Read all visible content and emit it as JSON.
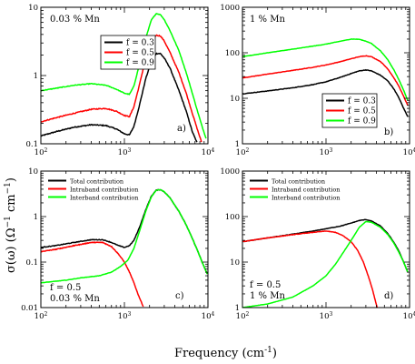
{
  "figure": {
    "ylabel": "σ(ω)  (Ω",
    "ylabel_sup1": "−1",
    "ylabel_mid": " cm",
    "ylabel_sup2": "−1",
    "ylabel_end": ")",
    "xlabel": "Frequency (cm",
    "xlabel_sup": "-1",
    "xlabel_end": ")"
  },
  "chart_data": [
    {
      "id": "a",
      "type": "line",
      "panel_label": "a)",
      "annotations": [
        "0.03 % Mn"
      ],
      "legend_position": "top-right",
      "xscale": "log",
      "yscale": "log",
      "xlim": [
        100,
        10000
      ],
      "ylim": [
        0.1,
        10
      ],
      "xtick_values": [
        100,
        1000,
        10000
      ],
      "xtick_labels": [
        "10",
        "10",
        "10"
      ],
      "xtick_exps": [
        "2",
        "3",
        "4"
      ],
      "ytick_values": [
        0.1,
        1,
        10
      ],
      "ytick_labels": [
        "0.1",
        "1",
        "10"
      ],
      "series": [
        {
          "name": "f = 0.3",
          "color": "#000000",
          "noise": 0.015,
          "points": [
            [
              100,
              0.13
            ],
            [
              150,
              0.15
            ],
            [
              250,
              0.175
            ],
            [
              400,
              0.19
            ],
            [
              600,
              0.185
            ],
            [
              800,
              0.165
            ],
            [
              1000,
              0.14
            ],
            [
              1150,
              0.135
            ],
            [
              1300,
              0.18
            ],
            [
              1500,
              0.35
            ],
            [
              1800,
              0.9
            ],
            [
              2100,
              1.6
            ],
            [
              2400,
              2.1
            ],
            [
              2700,
              2.1
            ],
            [
              3000,
              1.8
            ],
            [
              3500,
              1.3
            ],
            [
              4500,
              0.6
            ],
            [
              5500,
              0.3
            ],
            [
              6500,
              0.15
            ],
            [
              7500,
              0.1
            ]
          ]
        },
        {
          "name": "f = 0.5",
          "color": "#ff0000",
          "noise": 0.015,
          "points": [
            [
              100,
              0.21
            ],
            [
              150,
              0.24
            ],
            [
              250,
              0.28
            ],
            [
              400,
              0.32
            ],
            [
              600,
              0.33
            ],
            [
              800,
              0.3
            ],
            [
              1000,
              0.26
            ],
            [
              1150,
              0.25
            ],
            [
              1300,
              0.35
            ],
            [
              1500,
              0.7
            ],
            [
              1800,
              1.8
            ],
            [
              2100,
              3.2
            ],
            [
              2400,
              3.9
            ],
            [
              2700,
              3.8
            ],
            [
              3000,
              3.2
            ],
            [
              3500,
              2.2
            ],
            [
              4500,
              1.1
            ],
            [
              5500,
              0.55
            ],
            [
              6500,
              0.28
            ],
            [
              7500,
              0.16
            ],
            [
              8500,
              0.1
            ]
          ]
        },
        {
          "name": "f = 0.9",
          "color": "#00ff00",
          "noise": 0.01,
          "points": [
            [
              100,
              0.6
            ],
            [
              150,
              0.65
            ],
            [
              250,
              0.72
            ],
            [
              400,
              0.76
            ],
            [
              600,
              0.72
            ],
            [
              800,
              0.63
            ],
            [
              1000,
              0.55
            ],
            [
              1150,
              0.53
            ],
            [
              1300,
              0.7
            ],
            [
              1500,
              1.4
            ],
            [
              1800,
              3.5
            ],
            [
              2100,
              6.5
            ],
            [
              2400,
              8.1
            ],
            [
              2700,
              7.8
            ],
            [
              3000,
              6.6
            ],
            [
              3500,
              4.6
            ],
            [
              4500,
              2.3
            ],
            [
              5500,
              1.1
            ],
            [
              6500,
              0.55
            ],
            [
              7500,
              0.3
            ],
            [
              8500,
              0.18
            ],
            [
              9500,
              0.12
            ]
          ]
        }
      ]
    },
    {
      "id": "b",
      "type": "line",
      "panel_label": "b)",
      "annotations": [
        "1 % Mn"
      ],
      "legend_position": "bottom-right",
      "xscale": "log",
      "yscale": "log",
      "xlim": [
        100,
        10000
      ],
      "ylim": [
        1,
        1000
      ],
      "xtick_values": [
        100,
        1000,
        10000
      ],
      "xtick_labels": [
        "10",
        "10",
        "10"
      ],
      "xtick_exps": [
        "2",
        "3",
        "4"
      ],
      "ytick_values": [
        1,
        10,
        100,
        1000
      ],
      "ytick_labels": [
        "1",
        "10",
        "100",
        "1000"
      ],
      "series": [
        {
          "name": "f = 0.3",
          "color": "#000000",
          "noise": 0.012,
          "points": [
            [
              100,
              12.5
            ],
            [
              200,
              14.5
            ],
            [
              400,
              17
            ],
            [
              700,
              20
            ],
            [
              1000,
              23
            ],
            [
              1500,
              29
            ],
            [
              2000,
              35
            ],
            [
              2500,
              40
            ],
            [
              3000,
              42
            ],
            [
              3500,
              40
            ],
            [
              4500,
              32
            ],
            [
              5500,
              24
            ],
            [
              6500,
              16
            ],
            [
              7500,
              10
            ],
            [
              8500,
              6
            ],
            [
              9500,
              4
            ]
          ]
        },
        {
          "name": "f = 0.5",
          "color": "#ff0000",
          "noise": 0.01,
          "points": [
            [
              100,
              28
            ],
            [
              200,
              34
            ],
            [
              400,
              41
            ],
            [
              700,
              48
            ],
            [
              1000,
              54
            ],
            [
              1500,
              64
            ],
            [
              2000,
              74
            ],
            [
              2500,
              82
            ],
            [
              3000,
              86
            ],
            [
              3500,
              82
            ],
            [
              4500,
              64
            ],
            [
              5500,
              44
            ],
            [
              6500,
              28
            ],
            [
              7500,
              18
            ],
            [
              8500,
              11
            ],
            [
              9500,
              7
            ]
          ]
        },
        {
          "name": "f = 0.9",
          "color": "#00ff00",
          "noise": 0.008,
          "points": [
            [
              100,
              82
            ],
            [
              200,
              100
            ],
            [
              400,
              120
            ],
            [
              700,
              140
            ],
            [
              1000,
              155
            ],
            [
              1500,
              180
            ],
            [
              2000,
              200
            ],
            [
              2500,
              198
            ],
            [
              3000,
              180
            ],
            [
              3500,
              160
            ],
            [
              4500,
              110
            ],
            [
              5500,
              70
            ],
            [
              6500,
              42
            ],
            [
              7500,
              25
            ],
            [
              8500,
              15
            ],
            [
              9500,
              9
            ]
          ]
        }
      ]
    },
    {
      "id": "c",
      "type": "line",
      "panel_label": "c)",
      "annotations": [
        "f = 0.5",
        "0.03 % Mn"
      ],
      "legend_position": "top-left",
      "xscale": "log",
      "yscale": "log",
      "xlim": [
        100,
        10000
      ],
      "ylim": [
        0.01,
        10
      ],
      "xtick_values": [
        100,
        1000,
        10000
      ],
      "xtick_labels": [
        "10",
        "10",
        "10"
      ],
      "xtick_exps": [
        "2",
        "3",
        "4"
      ],
      "ytick_values": [
        0.01,
        0.1,
        1,
        10
      ],
      "ytick_labels": [
        "0.01",
        "0.1",
        "1",
        "10"
      ],
      "series": [
        {
          "name": "Total contribution",
          "color": "#000000",
          "noise": 0.015,
          "points": [
            [
              100,
              0.21
            ],
            [
              150,
              0.23
            ],
            [
              250,
              0.27
            ],
            [
              400,
              0.31
            ],
            [
              550,
              0.31
            ],
            [
              700,
              0.27
            ],
            [
              850,
              0.23
            ],
            [
              1000,
              0.21
            ],
            [
              1150,
              0.23
            ],
            [
              1300,
              0.3
            ],
            [
              1500,
              0.55
            ],
            [
              1800,
              1.4
            ],
            [
              2100,
              2.8
            ],
            [
              2400,
              3.8
            ],
            [
              2700,
              3.9
            ],
            [
              3000,
              3.5
            ],
            [
              3500,
              2.6
            ],
            [
              4500,
              1.3
            ],
            [
              5500,
              0.65
            ],
            [
              6500,
              0.33
            ],
            [
              7500,
              0.18
            ],
            [
              8500,
              0.1
            ],
            [
              9800,
              0.055
            ]
          ]
        },
        {
          "name": "Intraband contribution",
          "color": "#ff0000",
          "noise": 0.015,
          "points": [
            [
              100,
              0.17
            ],
            [
              150,
              0.19
            ],
            [
              250,
              0.23
            ],
            [
              400,
              0.27
            ],
            [
              550,
              0.27
            ],
            [
              700,
              0.22
            ],
            [
              850,
              0.15
            ],
            [
              1000,
              0.1
            ],
            [
              1150,
              0.06
            ],
            [
              1300,
              0.035
            ],
            [
              1450,
              0.02
            ],
            [
              1600,
              0.013
            ],
            [
              1700,
              0.01
            ]
          ]
        },
        {
          "name": "Interband contribution",
          "color": "#00ff00",
          "noise": 0.008,
          "points": [
            [
              100,
              0.035
            ],
            [
              200,
              0.04
            ],
            [
              300,
              0.045
            ],
            [
              500,
              0.05
            ],
            [
              700,
              0.06
            ],
            [
              900,
              0.08
            ],
            [
              1100,
              0.11
            ],
            [
              1300,
              0.2
            ],
            [
              1500,
              0.45
            ],
            [
              1800,
              1.3
            ],
            [
              2100,
              2.7
            ],
            [
              2400,
              3.8
            ],
            [
              2700,
              3.9
            ],
            [
              3000,
              3.5
            ],
            [
              3500,
              2.6
            ],
            [
              4500,
              1.3
            ],
            [
              5500,
              0.65
            ],
            [
              6500,
              0.33
            ],
            [
              7500,
              0.18
            ],
            [
              8500,
              0.1
            ],
            [
              9800,
              0.055
            ]
          ]
        }
      ]
    },
    {
      "id": "d",
      "type": "line",
      "panel_label": "d)",
      "annotations": [
        "f = 0.5",
        "1 % Mn"
      ],
      "legend_position": "top-left",
      "xscale": "log",
      "yscale": "log",
      "xlim": [
        100,
        10000
      ],
      "ylim": [
        1,
        1000
      ],
      "xtick_values": [
        100,
        1000,
        10000
      ],
      "xtick_labels": [
        "10",
        "10",
        "10"
      ],
      "xtick_exps": [
        "2",
        "3",
        "4"
      ],
      "ytick_values": [
        1,
        10,
        100,
        1000
      ],
      "ytick_labels": [
        "1",
        "10",
        "100",
        "1000"
      ],
      "series": [
        {
          "name": "Total contribution",
          "color": "#000000",
          "noise": 0.01,
          "points": [
            [
              100,
              28
            ],
            [
              200,
              34
            ],
            [
              400,
              41
            ],
            [
              700,
              48
            ],
            [
              1000,
              54
            ],
            [
              1500,
              62
            ],
            [
              2000,
              72
            ],
            [
              2500,
              82
            ],
            [
              3000,
              86
            ],
            [
              3500,
              80
            ],
            [
              4500,
              62
            ],
            [
              5500,
              42
            ],
            [
              6500,
              27
            ],
            [
              7500,
              17
            ],
            [
              8500,
              10
            ],
            [
              9500,
              6
            ]
          ]
        },
        {
          "name": "Intraband contribution",
          "color": "#ff0000",
          "noise": 0.01,
          "points": [
            [
              100,
              28
            ],
            [
              200,
              34
            ],
            [
              400,
              40
            ],
            [
              700,
              45
            ],
            [
              1000,
              48
            ],
            [
              1300,
              45
            ],
            [
              1600,
              38
            ],
            [
              2000,
              28
            ],
            [
              2400,
              18
            ],
            [
              2800,
              10
            ],
            [
              3200,
              5
            ],
            [
              3600,
              2.5
            ],
            [
              3900,
              1.4
            ],
            [
              4100,
              1
            ]
          ]
        },
        {
          "name": "Interband contribution",
          "color": "#00ff00",
          "noise": 0.005,
          "points": [
            [
              100,
              1
            ],
            [
              200,
              1.2
            ],
            [
              400,
              1.7
            ],
            [
              700,
              3
            ],
            [
              1000,
              5
            ],
            [
              1300,
              9
            ],
            [
              1600,
              16
            ],
            [
              2000,
              30
            ],
            [
              2500,
              58
            ],
            [
              3000,
              78
            ],
            [
              3500,
              75
            ],
            [
              4500,
              58
            ],
            [
              5500,
              40
            ],
            [
              6500,
              26
            ],
            [
              7500,
              16
            ],
            [
              8500,
              10
            ],
            [
              9500,
              6
            ]
          ]
        }
      ]
    }
  ]
}
